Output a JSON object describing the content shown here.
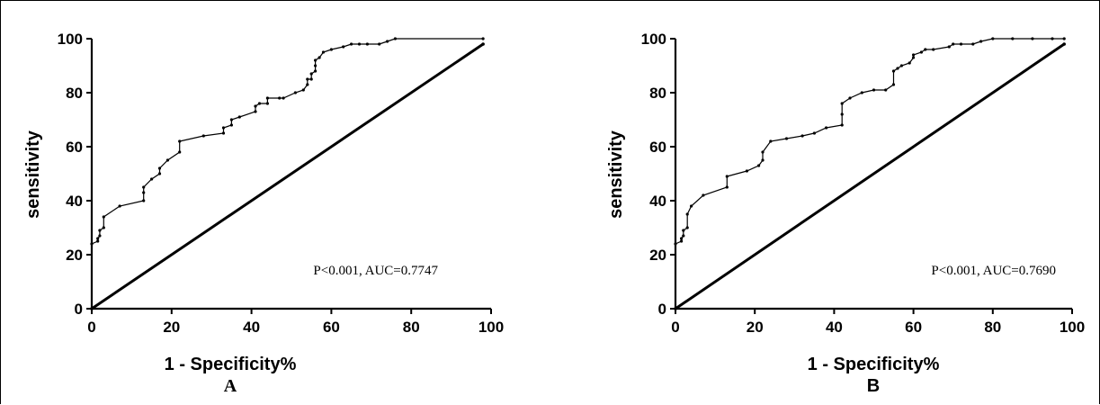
{
  "chart_data": [
    {
      "type": "line",
      "panel_label": "A",
      "xlabel": "1 - Specificity%",
      "ylabel": "sensitivity",
      "xlim": [
        0,
        100
      ],
      "ylim": [
        0,
        100
      ],
      "xticks": [
        "0",
        "20",
        "40",
        "60",
        "80",
        "100"
      ],
      "yticks": [
        "0",
        "20",
        "40",
        "60",
        "80",
        "100"
      ],
      "annotation": "P<0.001, AUC=0.7747",
      "series": [
        {
          "x": [
            0,
            0,
            1.5,
            1.5,
            2,
            2,
            3,
            3,
            7,
            13,
            13,
            13,
            15,
            17,
            17,
            19,
            22,
            22,
            28,
            33,
            33,
            35,
            35,
            37,
            41,
            41,
            42,
            44,
            44,
            47,
            48,
            51,
            53,
            54,
            54,
            55,
            55,
            56,
            56,
            56,
            57,
            58,
            60,
            63,
            65,
            67,
            69,
            72,
            74,
            76,
            98
          ],
          "y": [
            0,
            24,
            25,
            26,
            27,
            29,
            30,
            34,
            38,
            40,
            43,
            45,
            48,
            50,
            52,
            55,
            58,
            62,
            64,
            65,
            67,
            68,
            70,
            71,
            73,
            75,
            76,
            76,
            78,
            78,
            78,
            80,
            81,
            83,
            85,
            85,
            87,
            88,
            90,
            92,
            93,
            95,
            96,
            97,
            98,
            98,
            98,
            98,
            99,
            100,
            100
          ]
        },
        {
          "x": [
            0,
            98
          ],
          "y": [
            0,
            98
          ]
        }
      ]
    },
    {
      "type": "line",
      "panel_label": "B",
      "xlabel": "1 - Specificity%",
      "ylabel": "sensitivity",
      "xlim": [
        0,
        100
      ],
      "ylim": [
        0,
        100
      ],
      "xticks": [
        "0",
        "20",
        "40",
        "60",
        "80",
        "100"
      ],
      "yticks": [
        "0",
        "20",
        "40",
        "60",
        "80",
        "100"
      ],
      "annotation": "P<0.001, AUC=0.7690",
      "series": [
        {
          "x": [
            0,
            0,
            1.5,
            1.5,
            2,
            2,
            3,
            3,
            4,
            7,
            13,
            13,
            18,
            21,
            22,
            22,
            24,
            28,
            32,
            35,
            38,
            42,
            42,
            42,
            44,
            47,
            50,
            53,
            55,
            55,
            56,
            57,
            59,
            60,
            60,
            62,
            63,
            65,
            69,
            70,
            72,
            75,
            77,
            80,
            85,
            90,
            95,
            98
          ],
          "y": [
            0,
            24,
            25,
            26,
            27,
            29,
            30,
            35,
            38,
            42,
            45,
            49,
            51,
            53,
            55,
            58,
            62,
            63,
            64,
            65,
            67,
            68,
            72,
            76,
            78,
            80,
            81,
            81,
            83,
            88,
            89,
            90,
            91,
            93,
            94,
            95,
            96,
            96,
            97,
            98,
            98,
            98,
            99,
            100,
            100,
            100,
            100,
            100
          ]
        },
        {
          "x": [
            0,
            98
          ],
          "y": [
            0,
            98
          ]
        }
      ]
    }
  ]
}
